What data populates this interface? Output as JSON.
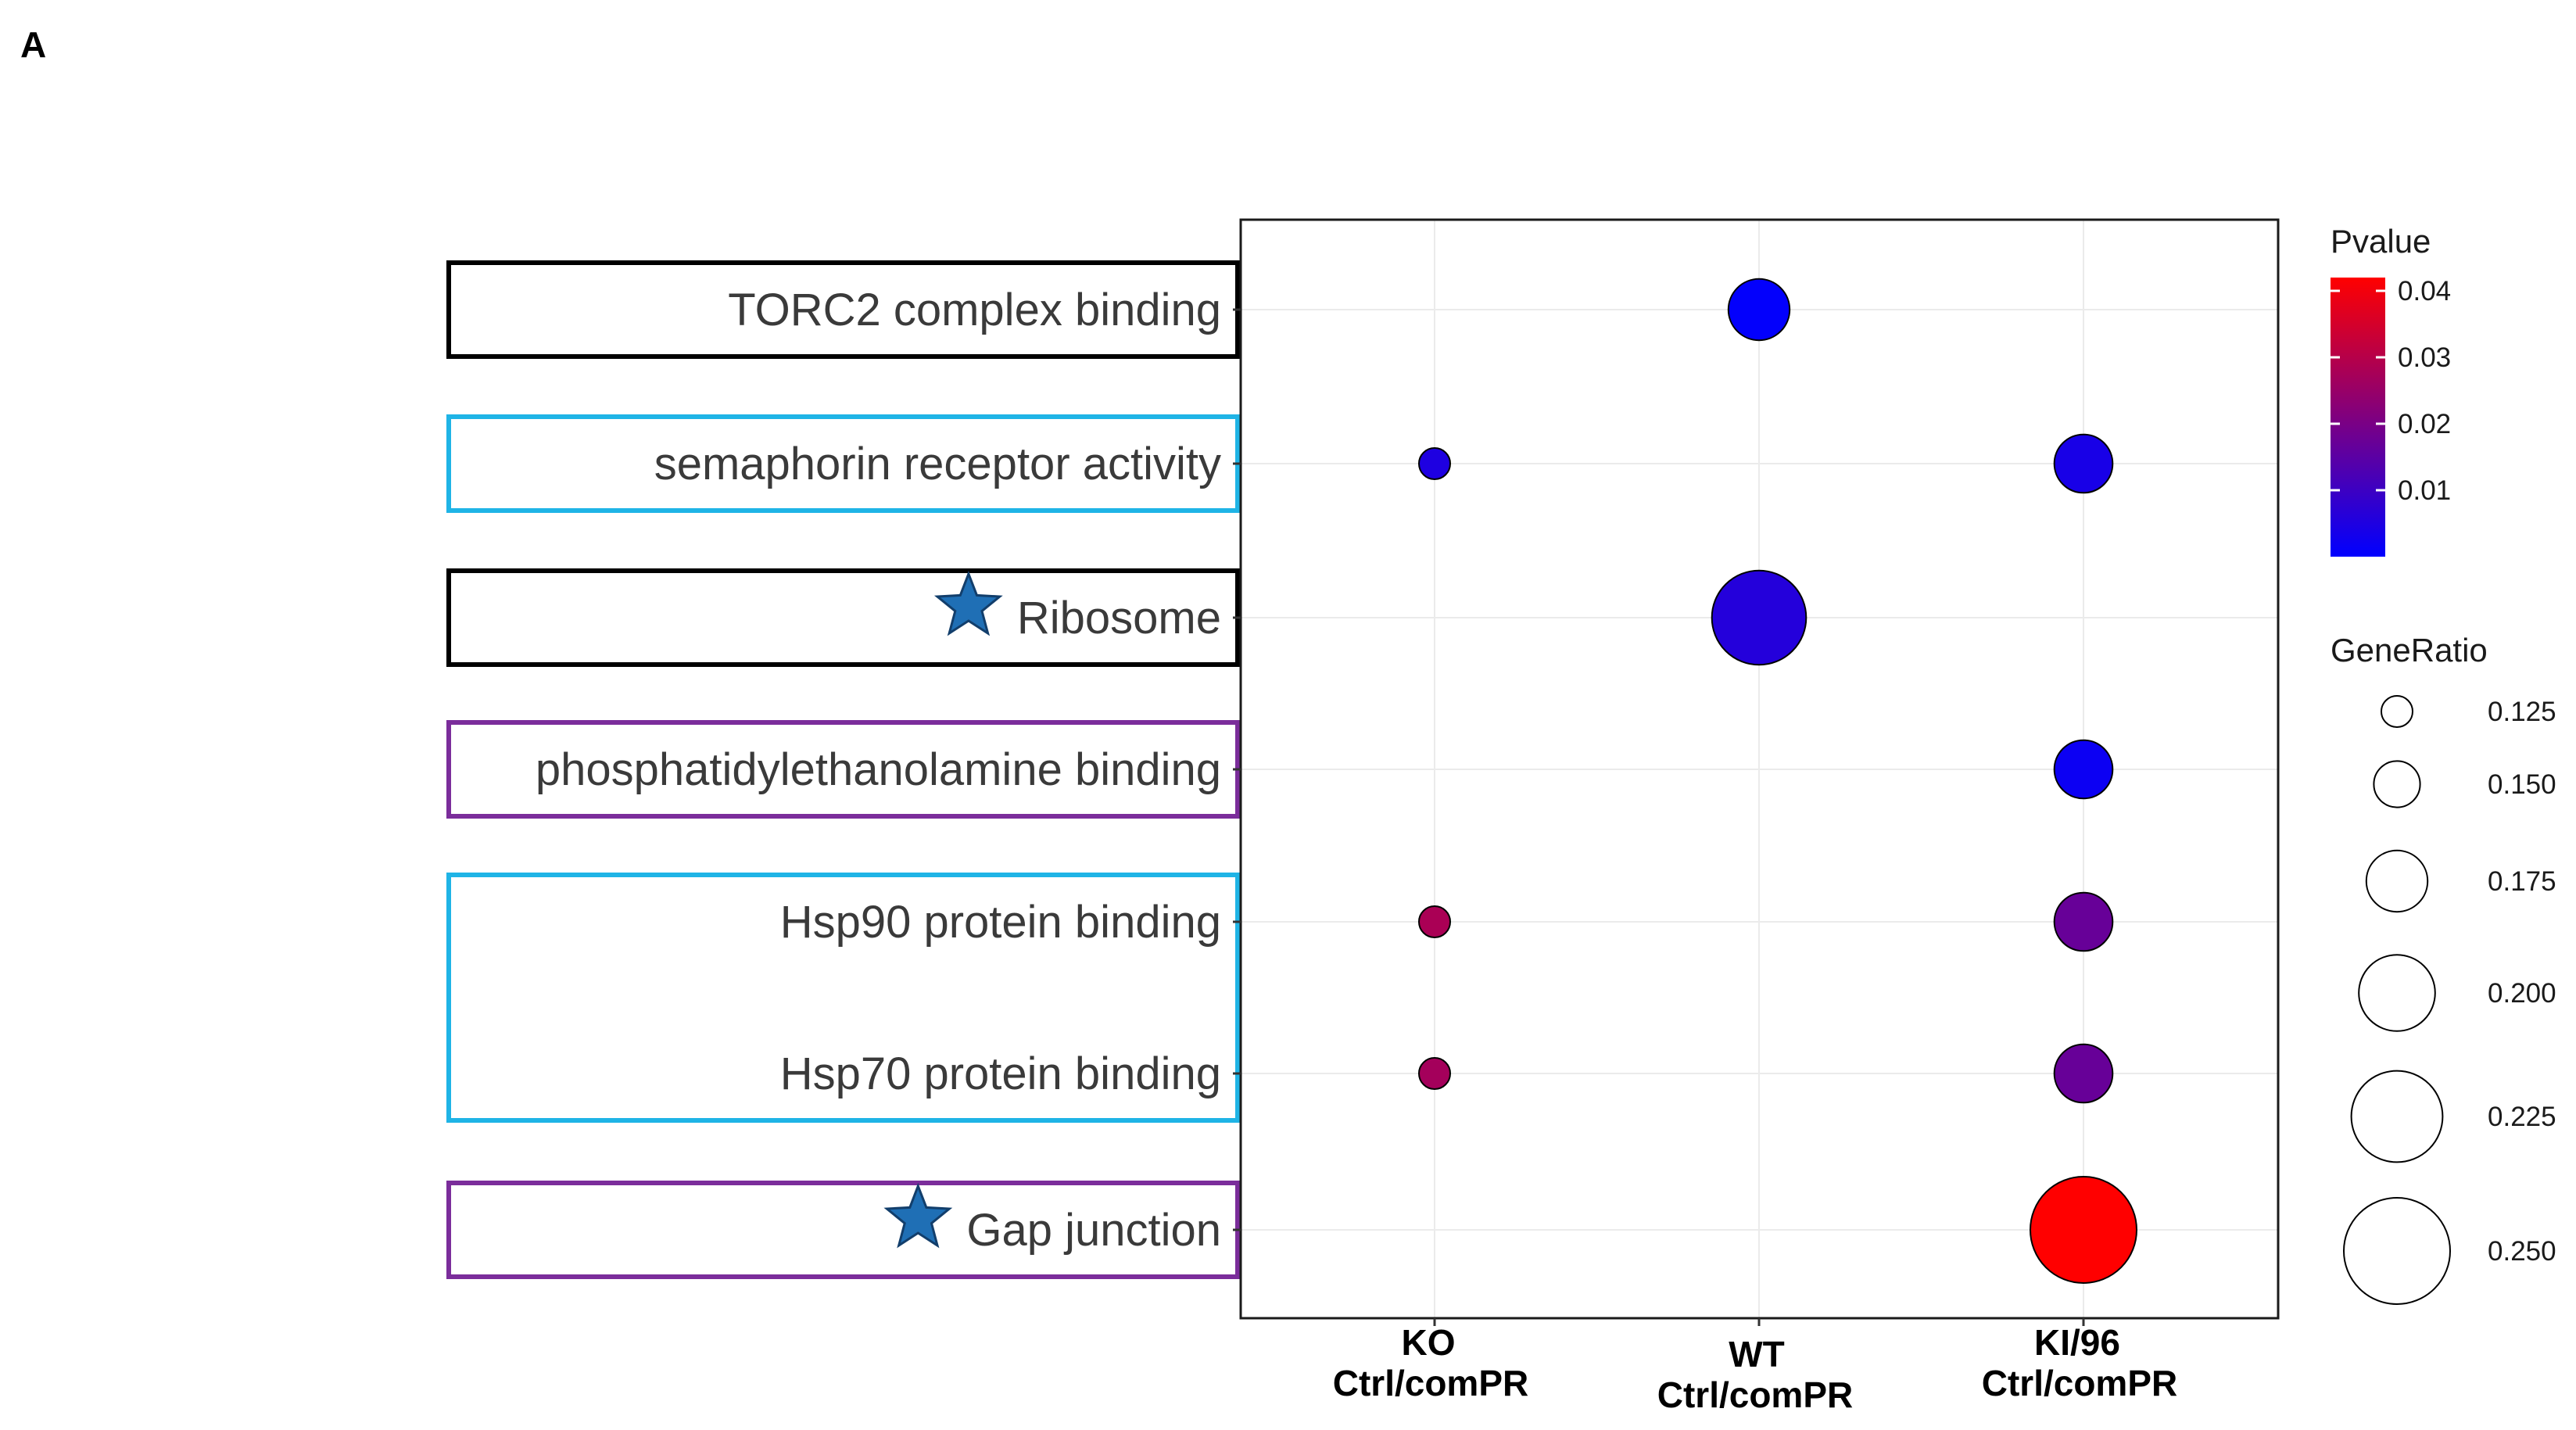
{
  "panel_label": "A",
  "chart_data": {
    "type": "scatter",
    "subtype": "dot-plot",
    "title": "",
    "xlabel": "",
    "ylabel": "",
    "x_categories": [
      {
        "line1": "KO",
        "line2": "Ctrl/comPR"
      },
      {
        "line1": "WT",
        "line2": "Ctrl/comPR"
      },
      {
        "line1": "KI/96",
        "line2": "Ctrl/comPR"
      }
    ],
    "y_categories": [
      "TORC2 complex binding",
      "semaphorin receptor activity",
      "Ribosome",
      "phosphatidylethanolamine binding",
      "Hsp90 protein binding",
      "Hsp70 protein binding",
      "Gap junction"
    ],
    "starred_terms": [
      "Ribosome",
      "Gap junction"
    ],
    "label_box_groups": [
      {
        "rows": [
          "TORC2 complex binding"
        ],
        "color": "#000000"
      },
      {
        "rows": [
          "semaphorin receptor activity"
        ],
        "color": "#1fb4e6"
      },
      {
        "rows": [
          "Ribosome"
        ],
        "color": "#000000"
      },
      {
        "rows": [
          "phosphatidylethanolamine binding"
        ],
        "color": "#7b2d9b"
      },
      {
        "rows": [
          "Hsp90 protein binding",
          "Hsp70 protein binding"
        ],
        "color": "#1fb4e6"
      },
      {
        "rows": [
          "Gap junction"
        ],
        "color": "#7b2d9b"
      }
    ],
    "points": [
      {
        "term": "TORC2 complex binding",
        "group": "WT",
        "pvalue": 0.0005,
        "gene_ratio": 0.175
      },
      {
        "term": "semaphorin receptor activity",
        "group": "KO",
        "pvalue": 0.005,
        "gene_ratio": 0.125
      },
      {
        "term": "semaphorin receptor activity",
        "group": "KI/96",
        "pvalue": 0.004,
        "gene_ratio": 0.17
      },
      {
        "term": "Ribosome",
        "group": "WT",
        "pvalue": 0.006,
        "gene_ratio": 0.23
      },
      {
        "term": "phosphatidylethanolamine binding",
        "group": "KI/96",
        "pvalue": 0.002,
        "gene_ratio": 0.17
      },
      {
        "term": "Hsp90 protein binding",
        "group": "KO",
        "pvalue": 0.028,
        "gene_ratio": 0.125
      },
      {
        "term": "Hsp90 protein binding",
        "group": "KI/96",
        "pvalue": 0.017,
        "gene_ratio": 0.17
      },
      {
        "term": "Hsp70 protein binding",
        "group": "KO",
        "pvalue": 0.027,
        "gene_ratio": 0.125
      },
      {
        "term": "Hsp70 protein binding",
        "group": "KI/96",
        "pvalue": 0.017,
        "gene_ratio": 0.17
      },
      {
        "term": "Gap junction",
        "group": "KI/96",
        "pvalue": 0.042,
        "gene_ratio": 0.25
      }
    ],
    "color_legend": {
      "title": "Pvalue",
      "min": 0.0,
      "max": 0.042,
      "ticks": [
        0.04,
        0.03,
        0.02,
        0.01
      ],
      "tick_labels": [
        "0.04",
        "0.03",
        "0.02",
        "0.01"
      ],
      "color_low": "#0000ff",
      "color_high": "#ff0000"
    },
    "size_legend": {
      "title": "GeneRatio",
      "values": [
        0.125,
        0.15,
        0.175,
        0.2,
        0.225,
        0.25
      ],
      "labels": [
        "0.125",
        "0.150",
        "0.175",
        "0.200",
        "0.225",
        "0.250"
      ]
    },
    "grid": true,
    "legend_position": "right"
  },
  "colors": {
    "panel_border": "#1a1a1a",
    "grid": "#ebebeb",
    "star_fill": "#1f6fb5",
    "star_stroke": "#123e6b",
    "point_stroke": "#000000"
  }
}
